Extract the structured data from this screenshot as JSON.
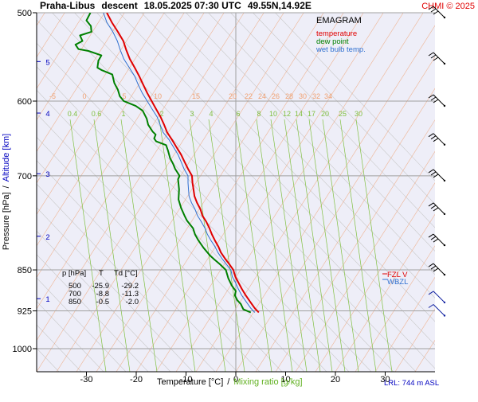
{
  "header": {
    "station": "Praha-Libus",
    "mode": "descent",
    "datetime": "18.05.2025 07:30 UTC",
    "coords": "49.55N,14.92E",
    "copyright": "CHMI © 2025"
  },
  "colors": {
    "temperature": "#e00000",
    "dew_point": "#008000",
    "wet_bulb": "#3070d0",
    "background": "#eeeef8",
    "isotherm": "#f0a070",
    "mixing": "#80c040",
    "dry_adiabat": "#c8c8c8",
    "altitude_axis": "#0000c0"
  },
  "legend": {
    "title": "EMAGRAM",
    "items": [
      {
        "label": "temperature",
        "color": "#e00000"
      },
      {
        "label": "dew point",
        "color": "#008000"
      },
      {
        "label": "wet bulb temp.",
        "color": "#3070d0"
      }
    ]
  },
  "level_labels": {
    "fzl": "FZL V",
    "wbzl": "WBZL"
  },
  "table": {
    "header": [
      "p [hPa]",
      "T",
      "Td [°C]"
    ],
    "rows": [
      [
        "500",
        "-25.9",
        "-29.2"
      ],
      [
        "700",
        "-8.8",
        "-11.3"
      ],
      [
        "850",
        "-0.5",
        "-2.0"
      ]
    ]
  },
  "footer": {
    "lrl": "LRL: 744 m ASL"
  },
  "chart_data": {
    "type": "line",
    "title": "Praha-Libus descent 18.05.2025 07:30 UTC 49.55N,14.92E",
    "xlabel": "Temperature [°C]",
    "xlabel_sep": "/",
    "xlabel2": "Mixing ratio [g/kg]",
    "ylabel": "Pressure [hPa]",
    "ylabel_sep": "/",
    "ylabel2": "Altitude [km]",
    "xlim": [
      -40,
      40
    ],
    "ylim": [
      1000,
      500
    ],
    "y_scale": "log",
    "x_ticks": [
      -30,
      -20,
      -10,
      0,
      10,
      20,
      30
    ],
    "y_ticks": [
      500,
      600,
      700,
      850,
      925,
      1000
    ],
    "grid": true,
    "altitude_ticks": [
      {
        "label": "5",
        "p": 553
      },
      {
        "label": "4",
        "p": 615
      },
      {
        "label": "3",
        "p": 697
      },
      {
        "label": "2",
        "p": 793
      },
      {
        "label": "1",
        "p": 902
      }
    ],
    "isotherm_labels": [
      "-5",
      "0",
      "5",
      "10",
      "15",
      "20",
      "22",
      "24",
      "26",
      "28",
      "30",
      "32",
      "34"
    ],
    "mixing_ratios": [
      0.4,
      0.6,
      1,
      2,
      3,
      4,
      6,
      8,
      10,
      12,
      14,
      17,
      20,
      25,
      30
    ],
    "mixing_labels": [
      "0.4",
      "0.6",
      "1",
      "2",
      "3",
      "4",
      "6",
      "8",
      "10",
      "12",
      "14",
      "17",
      "20",
      "25",
      "30"
    ],
    "series": [
      {
        "name": "temperature",
        "color": "#e00000",
        "points": [
          [
            4.6,
            928
          ],
          [
            3.8,
            920
          ],
          [
            2.9,
            908
          ],
          [
            2.0,
            896
          ],
          [
            1.2,
            884
          ],
          [
            0.5,
            872
          ],
          [
            -0.1,
            862
          ],
          [
            -0.5,
            850
          ],
          [
            -1.3,
            840
          ],
          [
            -2.2,
            830
          ],
          [
            -3.0,
            820
          ],
          [
            -3.5,
            810
          ],
          [
            -4.2,
            800
          ],
          [
            -4.8,
            790
          ],
          [
            -5.3,
            780
          ],
          [
            -5.9,
            770
          ],
          [
            -6.7,
            760
          ],
          [
            -7.1,
            750
          ],
          [
            -7.8,
            740
          ],
          [
            -8.3,
            730
          ],
          [
            -8.5,
            720
          ],
          [
            -8.7,
            710
          ],
          [
            -8.8,
            700
          ],
          [
            -9.6,
            690
          ],
          [
            -10.3,
            680
          ],
          [
            -11.0,
            670
          ],
          [
            -11.9,
            660
          ],
          [
            -12.8,
            650
          ],
          [
            -13.8,
            640
          ],
          [
            -14.4,
            630
          ],
          [
            -15.1,
            620
          ],
          [
            -16.0,
            610
          ],
          [
            -16.9,
            600
          ],
          [
            -17.8,
            590
          ],
          [
            -18.6,
            580
          ],
          [
            -19.4,
            570
          ],
          [
            -20.3,
            560
          ],
          [
            -21.3,
            550
          ],
          [
            -22.0,
            540
          ],
          [
            -22.6,
            530
          ],
          [
            -23.7,
            520
          ],
          [
            -24.9,
            510
          ],
          [
            -25.9,
            500
          ]
        ]
      },
      {
        "name": "dew point",
        "color": "#008000",
        "points": [
          [
            3.0,
            928
          ],
          [
            1.5,
            922
          ],
          [
            1.0,
            912
          ],
          [
            0.3,
            905
          ],
          [
            -0.2,
            896
          ],
          [
            0.0,
            888
          ],
          [
            -0.8,
            878
          ],
          [
            -1.5,
            865
          ],
          [
            -2.0,
            850
          ],
          [
            -3.2,
            840
          ],
          [
            -4.3,
            832
          ],
          [
            -5.2,
            825
          ],
          [
            -6.5,
            812
          ],
          [
            -7.5,
            800
          ],
          [
            -8.2,
            790
          ],
          [
            -8.6,
            780
          ],
          [
            -9.8,
            768
          ],
          [
            -10.3,
            760
          ],
          [
            -11.0,
            748
          ],
          [
            -11.5,
            735
          ],
          [
            -11.4,
            720
          ],
          [
            -11.6,
            705
          ],
          [
            -11.3,
            700
          ],
          [
            -12.2,
            690
          ],
          [
            -12.6,
            683
          ],
          [
            -13.2,
            675
          ],
          [
            -13.6,
            665
          ],
          [
            -14.0,
            657
          ],
          [
            -16.0,
            652
          ],
          [
            -16.4,
            648
          ],
          [
            -16.1,
            643
          ],
          [
            -16.7,
            639
          ],
          [
            -17.6,
            630
          ],
          [
            -17.9,
            622
          ],
          [
            -18.7,
            612
          ],
          [
            -20.1,
            606
          ],
          [
            -22.5,
            600
          ],
          [
            -23.3,
            594
          ],
          [
            -23.7,
            586
          ],
          [
            -24.4,
            578
          ],
          [
            -24.8,
            568
          ],
          [
            -26.9,
            563
          ],
          [
            -27.8,
            560
          ],
          [
            -27.6,
            552
          ],
          [
            -27.0,
            546
          ],
          [
            -29.6,
            541
          ],
          [
            -31.6,
            539
          ],
          [
            -32.2,
            534
          ],
          [
            -30.8,
            530
          ],
          [
            -31.3,
            524
          ],
          [
            -29.0,
            520
          ],
          [
            -29.1,
            514
          ],
          [
            -30.0,
            508
          ],
          [
            -29.2,
            500
          ]
        ]
      },
      {
        "name": "wet bulb temp.",
        "color": "#3070d0",
        "points": [
          [
            3.8,
            928
          ],
          [
            3.0,
            920
          ],
          [
            2.1,
            908
          ],
          [
            1.2,
            896
          ],
          [
            0.5,
            884
          ],
          [
            -0.1,
            872
          ],
          [
            -0.7,
            862
          ],
          [
            -1.0,
            850
          ],
          [
            -1.9,
            840
          ],
          [
            -2.8,
            830
          ],
          [
            -3.6,
            820
          ],
          [
            -4.2,
            810
          ],
          [
            -5.0,
            800
          ],
          [
            -5.7,
            790
          ],
          [
            -6.2,
            780
          ],
          [
            -6.9,
            770
          ],
          [
            -7.7,
            760
          ],
          [
            -8.2,
            750
          ],
          [
            -8.9,
            740
          ],
          [
            -9.4,
            730
          ],
          [
            -9.5,
            720
          ],
          [
            -9.6,
            710
          ],
          [
            -9.6,
            700
          ],
          [
            -10.4,
            690
          ],
          [
            -11.0,
            680
          ],
          [
            -11.6,
            670
          ],
          [
            -12.5,
            660
          ],
          [
            -13.4,
            650
          ],
          [
            -14.6,
            640
          ],
          [
            -15.2,
            630
          ],
          [
            -15.8,
            620
          ],
          [
            -16.8,
            610
          ],
          [
            -17.8,
            600
          ],
          [
            -18.8,
            590
          ],
          [
            -19.6,
            580
          ],
          [
            -20.3,
            570
          ],
          [
            -21.4,
            560
          ],
          [
            -22.5,
            550
          ],
          [
            -23.2,
            540
          ],
          [
            -23.8,
            530
          ],
          [
            -24.7,
            520
          ],
          [
            -25.9,
            510
          ],
          [
            -26.6,
            500
          ]
        ]
      }
    ],
    "wind_levels": [
      500,
      550,
      600,
      650,
      700,
      750,
      800,
      850,
      900,
      925
    ]
  }
}
